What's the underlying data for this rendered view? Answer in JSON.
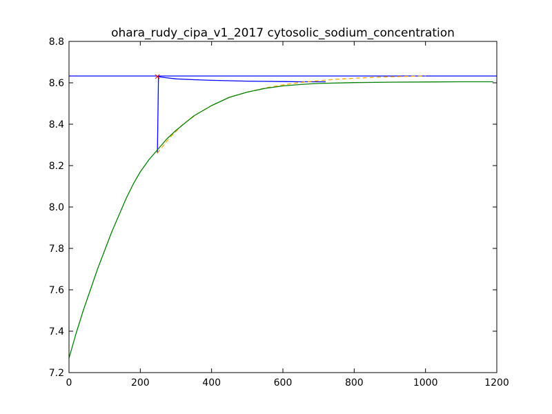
{
  "chart_data": {
    "type": "line",
    "title": "ohara_rudy_cipa_v1_2017 cytosolic_sodium_concentration",
    "xlabel": "",
    "ylabel": "",
    "xlim": [
      0,
      1200
    ],
    "ylim": [
      7.2,
      8.8
    ],
    "x_ticks": [
      0,
      200,
      400,
      600,
      800,
      1000,
      1200
    ],
    "y_ticks": [
      7.2,
      7.4,
      7.6,
      7.8,
      8.0,
      8.2,
      8.4,
      8.6,
      8.8
    ],
    "x_tick_labels": [
      "0",
      "200",
      "400",
      "600",
      "800",
      "1000",
      "1200"
    ],
    "y_tick_labels": [
      "7.2",
      "7.4",
      "7.6",
      "7.8",
      "8.0",
      "8.2",
      "8.4",
      "8.6",
      "8.8"
    ],
    "grid": false,
    "legend": "none",
    "series": [
      {
        "color": "#0000ff",
        "style": "solid",
        "x": [
          0,
          1200
        ],
        "y": [
          8.633,
          8.633
        ]
      },
      {
        "color": "#0000ff",
        "style": "solid",
        "x": [
          248,
          251,
          260,
          300,
          350,
          400,
          450,
          500,
          550,
          600,
          650,
          700,
          720
        ],
        "y": [
          8.26,
          8.63,
          8.627,
          8.619,
          8.615,
          8.612,
          8.61,
          8.608,
          8.607,
          8.606,
          8.605,
          8.605,
          8.605
        ]
      },
      {
        "color": "#ffa500",
        "style": "dashed",
        "x": [
          248,
          280,
          320,
          360,
          400,
          450,
          500,
          550,
          600,
          650,
          700,
          750,
          800,
          850,
          900,
          950,
          1000
        ],
        "y": [
          8.26,
          8.33,
          8.4,
          8.45,
          8.49,
          8.53,
          8.555,
          8.575,
          8.59,
          8.602,
          8.61,
          8.617,
          8.622,
          8.626,
          8.629,
          8.631,
          8.633
        ]
      },
      {
        "color": "#008000",
        "style": "solid",
        "x": [
          0,
          20,
          40,
          60,
          80,
          100,
          120,
          140,
          160,
          180,
          200,
          225,
          250,
          275,
          300,
          350,
          400,
          450,
          500,
          550,
          600,
          650,
          700,
          800,
          900,
          1000,
          1100,
          1190
        ],
        "y": [
          7.27,
          7.39,
          7.5,
          7.6,
          7.7,
          7.79,
          7.88,
          7.96,
          8.04,
          8.11,
          8.17,
          8.23,
          8.28,
          8.33,
          8.37,
          8.44,
          8.49,
          8.53,
          8.555,
          8.573,
          8.585,
          8.592,
          8.597,
          8.601,
          8.603,
          8.604,
          8.605,
          8.605
        ]
      }
    ],
    "markers": [
      {
        "x": 248,
        "y": 8.63,
        "symbol": "x",
        "color": "#ff0000"
      }
    ]
  }
}
